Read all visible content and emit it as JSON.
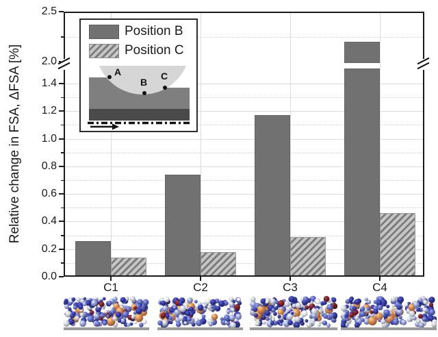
{
  "chart_data": {
    "type": "bar",
    "categories": [
      "C1",
      "C2",
      "C3",
      "C4"
    ],
    "series": [
      {
        "name": "Position B",
        "style": "solid",
        "values": [
          0.26,
          0.74,
          1.17,
          2.2
        ]
      },
      {
        "name": "Position C",
        "style": "hatched",
        "values": [
          0.14,
          0.18,
          0.29,
          0.46
        ]
      }
    ],
    "title": "",
    "xlabel": "",
    "ylabel": "Relative change in FSA, ΔFSA [%]",
    "axis_break": {
      "lower_segment": [
        0.0,
        1.5
      ],
      "upper_segment": [
        2.0,
        2.5
      ]
    },
    "yticks_labeled": [
      0.0,
      0.2,
      0.4,
      0.6,
      0.8,
      1.0,
      1.2,
      1.4,
      2.0,
      2.5
    ],
    "yticks_minor": [
      0.1,
      0.3,
      0.5,
      0.7,
      0.9,
      1.1,
      1.3,
      2.25
    ],
    "ylim_display": "0.0–1.5 break 2.0–2.5",
    "grid": {
      "horizontal_major": "solid light",
      "horizontal_minor": "dotted",
      "vertical_at_categories": true
    },
    "legend_position": "boxed inset, top-left"
  },
  "inset": {
    "legend": [
      {
        "label": "Position B",
        "swatch": "solid-gray"
      },
      {
        "label": "Position C",
        "swatch": "diagonal-hatch"
      }
    ],
    "diagram": {
      "points": [
        "A",
        "B",
        "C"
      ],
      "arrow_symbol": "→",
      "description": "sphere indenting substrate; A ahead of contact, B at bottom, C behind"
    }
  },
  "snapshots": {
    "items": [
      {
        "name": "snapshot-C1"
      },
      {
        "name": "snapshot-C2"
      },
      {
        "name": "snapshot-C3"
      },
      {
        "name": "snapshot-C4"
      }
    ],
    "palette": {
      "navy": "#2e3490",
      "blue": "#5a63b8",
      "periwinkle": "#8d96d2",
      "light_gray": "#c7cbd6",
      "white": "#e8eaef",
      "dark_red": "#701d28",
      "orange": "#d0804b",
      "base_strip": "#9a9a9a"
    }
  },
  "colors": {
    "bar_solid": "#717171",
    "hatch_bg": "#c6c6c6",
    "hatch_line": "#7d7d7d",
    "axis": "#1a1a1a",
    "grid_major": "#d9d9d9",
    "grid_minor": "#cfcfcf",
    "inset_sphere": "#d6d6d6",
    "inset_substrate": "#7f7f7f",
    "inset_base": "#4a4a4a"
  }
}
